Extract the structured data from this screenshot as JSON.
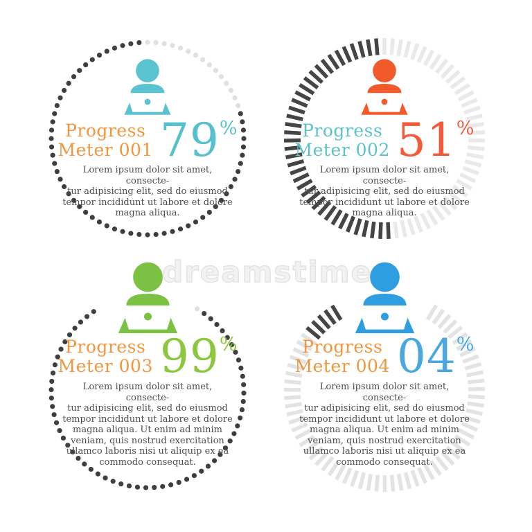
{
  "page": {
    "background": "#ffffff"
  },
  "watermark": {
    "text": "dreamstime.",
    "color": "#e2e2e2"
  },
  "chart_data": {
    "type": "progress-donut",
    "layout": "2x2-grid",
    "meters": [
      {
        "title": "Progress\nMeter 001",
        "value": 79,
        "value_text": "79",
        "percent_sign": "%",
        "body": "Lorem ipsum dolor sit amet, consecte-\ntur adipisicing elit, sed do eiusmod\ntempor incididunt ut labore et dolore\nmagna aliqua.",
        "colors": {
          "icon": "#5bc2cf",
          "title": "#f2953c",
          "value": "#56c0cc"
        },
        "ring": {
          "style": "dots",
          "filled_color": "#3f3f3f",
          "empty_color": "#e0e0e0",
          "gap_half_deg": 0,
          "step_deg": 5,
          "radius": 139,
          "dot_radius": 3.6
        }
      },
      {
        "title": "Progress\nMeter 002",
        "value": 51,
        "value_text": "51",
        "percent_sign": "%",
        "body": "Lorem ipsum dolor sit amet, consecte-\ntur adipisicing elit, sed do eiusmod\ntempor incididunt ut labore et dolore\nmagna aliqua.",
        "colors": {
          "icon": "#f15b2c",
          "title": "#5ec2ca",
          "value": "#f15b3a"
        },
        "ring": {
          "style": "ticks",
          "filled_color": "#454545",
          "empty_color": "#e9e9e9",
          "gap_half_deg": 0,
          "step_deg": 4.8,
          "outer_radius": 145,
          "tick_length": 24,
          "tick_width": 5.5
        }
      },
      {
        "title": "Progress\nMeter 003",
        "value": 99,
        "value_text": "99",
        "percent_sign": "%",
        "body": "Lorem ipsum dolor sit amet, consecte-\ntur adipisicing elit, sed do eiusmod\ntempor incididunt ut labore et dolore\nmagna aliqua. Ut enim ad minim\nveniam, quis nostrud exercitation\nullamco laboris nisi ut aliquip ex ea\ncommodo consequat.",
        "colors": {
          "icon": "#7bc143",
          "title": "#f2953c",
          "value": "#8dc63f"
        },
        "ring": {
          "style": "dots",
          "filled_color": "#3f3f3f",
          "empty_color": "#e0e0e0",
          "gap_half_deg": 31,
          "step_deg": 5,
          "radius": 139,
          "dot_radius": 3.6
        }
      },
      {
        "title": "Progress\nMeter 004",
        "value": 4,
        "value_text": "04",
        "percent_sign": "%",
        "body": "Lorem ipsum dolor sit amet, consecte-\ntur adipisicing elit, sed do eiusmod\ntempor incididunt ut labore et dolore\nmagna aliqua. Ut enim ad minim\nveniam, quis nostrud exercitation\nullamco laboris nisi ut aliquip ex ea\ncommodo consequat.",
        "colors": {
          "icon": "#2e9ee1",
          "title": "#f2953c",
          "value": "#4aa7e2"
        },
        "ring": {
          "style": "ticks",
          "filled_color": "#454545",
          "empty_color": "#e3e3e3",
          "gap_half_deg": 31,
          "step_deg": 4.8,
          "outer_radius": 145,
          "tick_length": 24,
          "tick_width": 5.5,
          "filled_override": 5
        }
      }
    ]
  }
}
